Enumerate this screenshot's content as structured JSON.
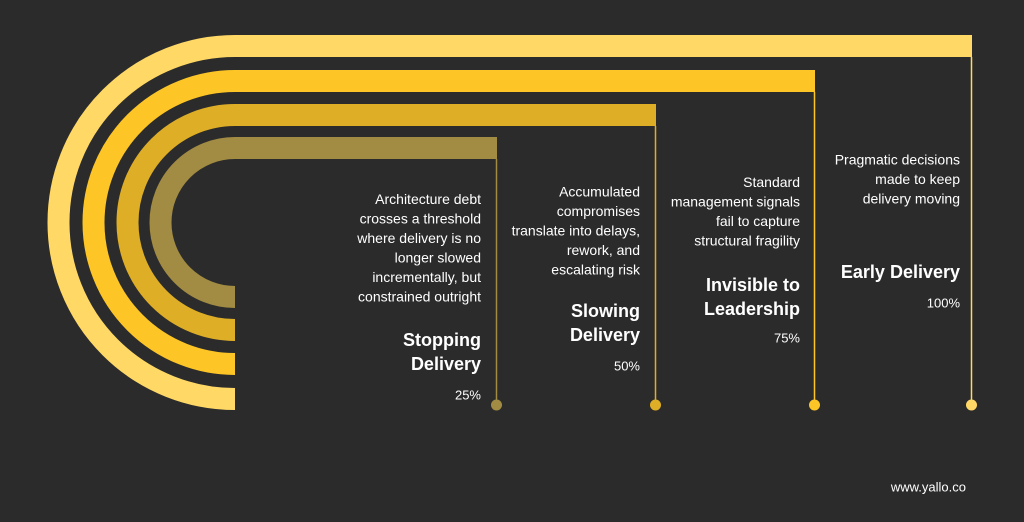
{
  "items": [
    {
      "title": [
        "Stopping",
        "Delivery"
      ],
      "description": [
        "Architecture debt",
        "crosses a threshold",
        "where delivery is no",
        "longer slowed",
        "incrementally, but",
        "constrained outright"
      ],
      "percent": "25%",
      "color": "#a28b42"
    },
    {
      "title": [
        "Slowing",
        "Delivery"
      ],
      "description": [
        "Accumulated",
        "compromises",
        "translate into delays,",
        "rework, and",
        "escalating risk"
      ],
      "percent": "50%",
      "color": "#dfae27"
    },
    {
      "title": [
        "Invisible to",
        "Leadership"
      ],
      "description": [
        "Standard",
        "management signals",
        "fail to capture",
        "structural fragility"
      ],
      "percent": "75%",
      "color": "#fdc526"
    },
    {
      "title": [
        "Early Delivery"
      ],
      "description": [
        "Pragmatic decisions",
        "made to keep",
        "delivery moving"
      ],
      "percent": "100%",
      "color": "#ffd866"
    }
  ],
  "footer": "www.yallo.co"
}
